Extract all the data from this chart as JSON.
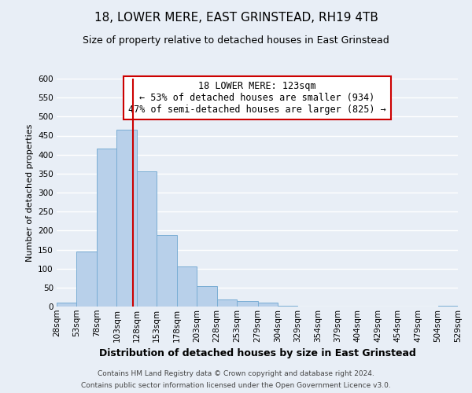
{
  "title": "18, LOWER MERE, EAST GRINSTEAD, RH19 4TB",
  "subtitle": "Size of property relative to detached houses in East Grinstead",
  "xlabel": "Distribution of detached houses by size in East Grinstead",
  "ylabel": "Number of detached properties",
  "bin_edges": [
    28,
    53,
    78,
    103,
    128,
    153,
    178,
    203,
    228,
    253,
    279,
    304,
    329,
    354,
    379,
    404,
    429,
    454,
    479,
    504,
    529
  ],
  "bin_counts": [
    10,
    144,
    415,
    465,
    355,
    188,
    105,
    53,
    18,
    14,
    10,
    3,
    1,
    0,
    0,
    0,
    0,
    0,
    0,
    3
  ],
  "bar_color": "#b8d0ea",
  "bar_edge_color": "#7aadd4",
  "property_size": 123,
  "vline_color": "#cc0000",
  "annotation_title": "18 LOWER MERE: 123sqm",
  "annotation_line1": "← 53% of detached houses are smaller (934)",
  "annotation_line2": "47% of semi-detached houses are larger (825) →",
  "annotation_box_facecolor": "#ffffff",
  "annotation_box_edgecolor": "#cc0000",
  "ylim": [
    0,
    600
  ],
  "yticks": [
    0,
    50,
    100,
    150,
    200,
    250,
    300,
    350,
    400,
    450,
    500,
    550,
    600
  ],
  "footnote1": "Contains HM Land Registry data © Crown copyright and database right 2024.",
  "footnote2": "Contains public sector information licensed under the Open Government Licence v3.0.",
  "bg_color": "#e8eef6",
  "grid_color": "#ffffff",
  "title_fontsize": 11,
  "subtitle_fontsize": 9,
  "xlabel_fontsize": 9,
  "ylabel_fontsize": 8,
  "tick_fontsize": 7.5,
  "annotation_fontsize": 8.5,
  "footnote_fontsize": 6.5
}
